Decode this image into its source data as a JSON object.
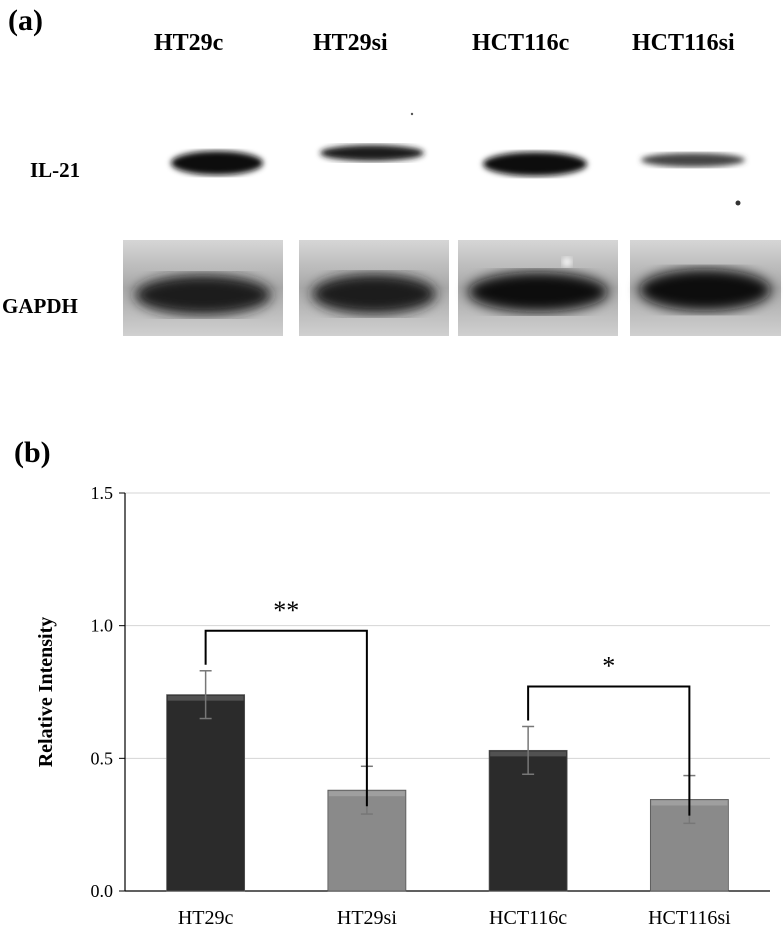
{
  "panels": {
    "a": "(a)",
    "b": "(b)"
  },
  "blot": {
    "lanes": [
      "HT29c",
      "HT29si",
      "HCT116c",
      "HCT116si"
    ],
    "rows": [
      "IL-21",
      "GAPDH"
    ]
  },
  "chart_data": {
    "type": "bar",
    "title": "",
    "xlabel": "",
    "ylabel": "Relative Intensity",
    "categories": [
      "HT29c",
      "HT29si",
      "HCT116c",
      "HCT116si"
    ],
    "values": [
      0.74,
      0.38,
      0.53,
      0.345
    ],
    "errors": [
      0.09,
      0.09,
      0.09,
      0.09
    ],
    "bar_colors": [
      "#2b2b2b",
      "#8a8a8a",
      "#2b2b2b",
      "#8a8a8a"
    ],
    "ylim": [
      0,
      1.5
    ],
    "yticks": [
      "0.0",
      "0.5",
      "1.0",
      "1.5"
    ],
    "grid": true,
    "legend": "none",
    "significance": [
      {
        "from": 0,
        "to": 1,
        "label": "**"
      },
      {
        "from": 2,
        "to": 3,
        "label": "*"
      }
    ]
  }
}
